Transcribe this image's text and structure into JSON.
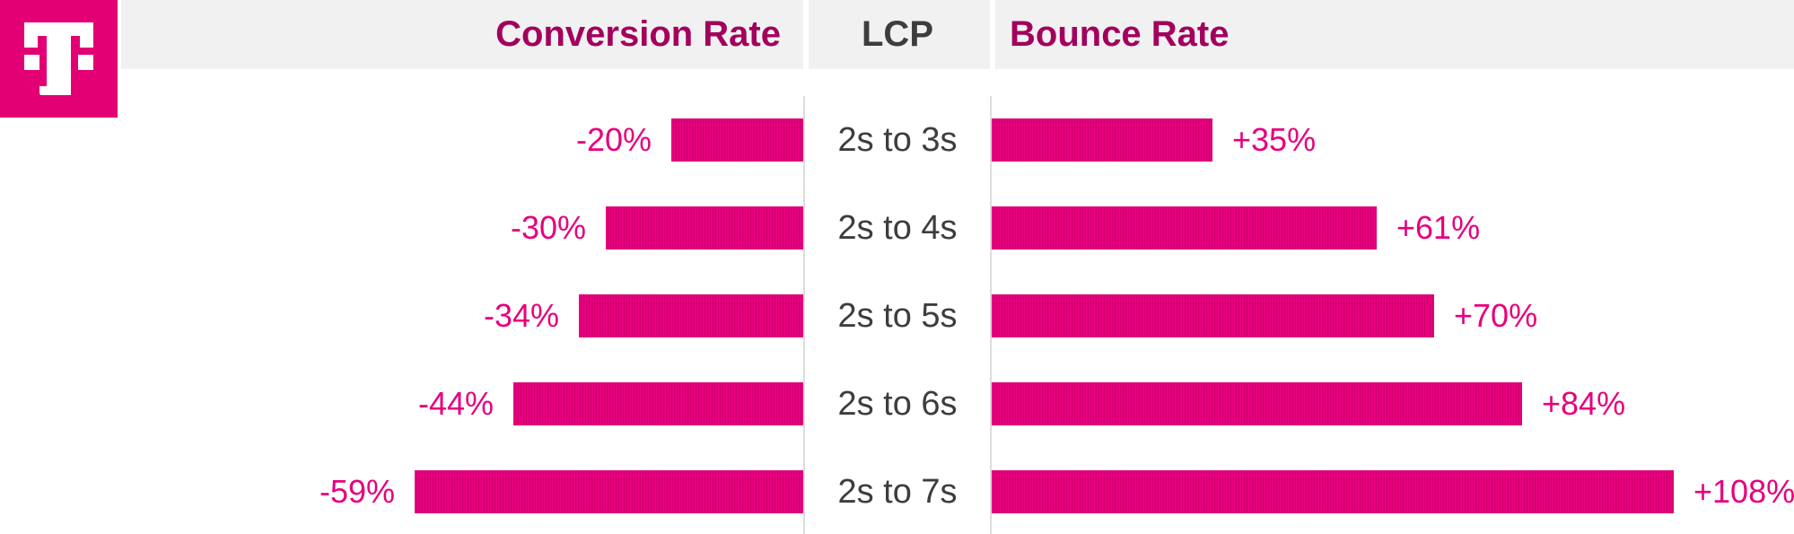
{
  "colors": {
    "magenta": "#E6007E",
    "magenta_stripe": "#D2006C",
    "header_magenta": "#A2005C",
    "text_dark": "#3D3D3D",
    "header_bg": "#F1F1F2",
    "line": "#DCDCDC",
    "logo_bg": "#E20074"
  },
  "header": {
    "left_title": "Conversion Rate",
    "center_title": "LCP",
    "right_title": "Bounce Rate"
  },
  "brand": {
    "logo": "t-mobile-telekom-logo"
  },
  "chart_data": {
    "type": "bar",
    "orientation": "horizontal-diverging",
    "title": "",
    "categories": [
      "2s to 3s",
      "2s to 4s",
      "2s to 5s",
      "2s to 6s",
      "2s to 7s"
    ],
    "series": [
      {
        "name": "Conversion Rate",
        "side": "left",
        "values": [
          -20,
          -30,
          -34,
          -44,
          -59
        ],
        "labels": [
          "-20%",
          "-30%",
          "-34%",
          "-44%",
          "-59%"
        ]
      },
      {
        "name": "Bounce Rate",
        "side": "right",
        "values": [
          35,
          61,
          70,
          84,
          108
        ],
        "labels": [
          "+35%",
          "+61%",
          "+70%",
          "+84%",
          "+108%"
        ]
      }
    ],
    "axis": {
      "left_range": [
        0,
        59
      ],
      "right_range": [
        0,
        108
      ],
      "grid": "off",
      "legend": "column-headers"
    }
  }
}
